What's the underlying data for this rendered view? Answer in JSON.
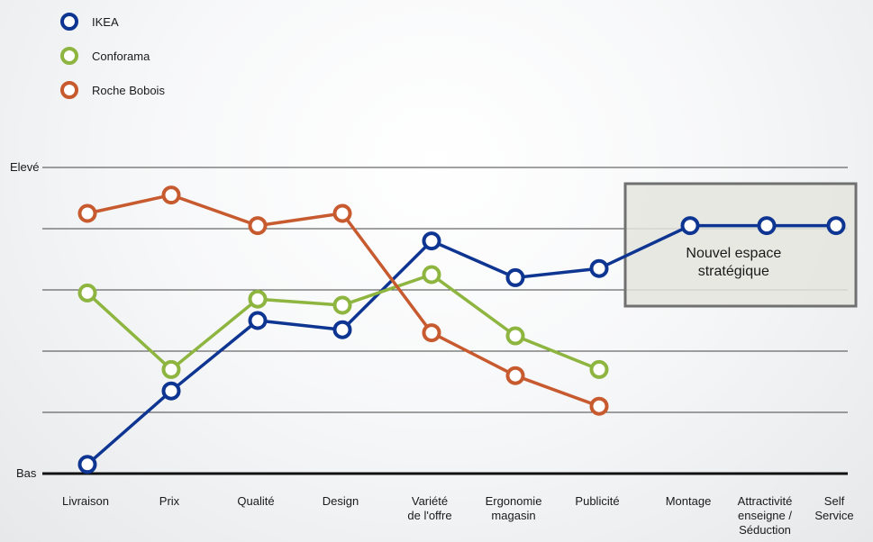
{
  "chart_data": {
    "type": "line",
    "y_ticks": [
      "Bas",
      "Elevé"
    ],
    "ylim": [
      0,
      5
    ],
    "grid": true,
    "legend_position": "top-left",
    "categories": [
      [
        "Livraison"
      ],
      [
        "Prix"
      ],
      [
        "Qualité"
      ],
      [
        "Design"
      ],
      [
        "Variété",
        "de l'offre"
      ],
      [
        "Ergonomie",
        "magasin"
      ],
      [
        "Publicité"
      ],
      [
        "Montage"
      ],
      [
        "Attractivité",
        "enseigne /",
        "Séduction"
      ],
      [
        "Self",
        "Service"
      ]
    ],
    "series": [
      {
        "name": "IKEA",
        "color": "#0d3591",
        "values": [
          0.15,
          1.35,
          2.5,
          2.35,
          3.8,
          3.2,
          3.35,
          4.05,
          4.05,
          4.05
        ]
      },
      {
        "name": "Conforama",
        "color": "#8db53f",
        "values": [
          2.95,
          1.7,
          2.85,
          2.75,
          3.25,
          2.25,
          1.7,
          null,
          null,
          null
        ]
      },
      {
        "name": "Roche Bobois",
        "color": "#c75a2e",
        "values": [
          4.25,
          4.55,
          4.05,
          4.25,
          2.3,
          1.6,
          1.1,
          null,
          null,
          null
        ]
      }
    ],
    "annotation": {
      "lines": [
        "Nouvel espace",
        "stratégique"
      ],
      "from_category": 7,
      "to_category": 9
    }
  }
}
